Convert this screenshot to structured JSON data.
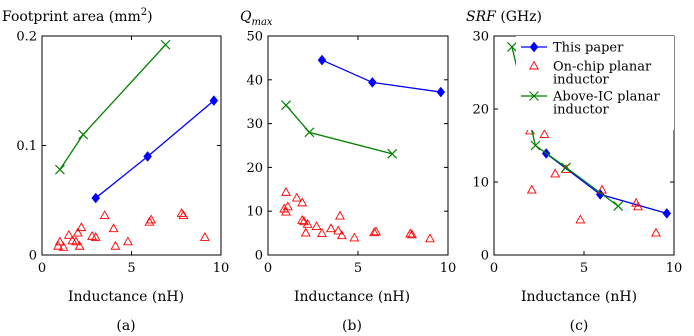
{
  "chart_data": [
    {
      "type": "scatter",
      "title": "Footprint area",
      "title_unit": "(mm",
      "title_sup": "2",
      "title_close": ")",
      "xlabel": "Inductance (nH)",
      "caption": "(a)",
      "xlim": [
        0,
        10
      ],
      "ylim": [
        0,
        0.2
      ],
      "xticks": [
        {
          "v": 0,
          "label": "0"
        },
        {
          "v": 5,
          "label": "5"
        },
        {
          "v": 10,
          "label": "10"
        }
      ],
      "yticks": [
        {
          "v": 0,
          "label": "0"
        },
        {
          "v": 0.1,
          "label": "0.1"
        },
        {
          "v": 0.2,
          "label": "0.2"
        }
      ],
      "series": [
        {
          "name": "This paper",
          "marker": "diamond",
          "line": true,
          "color": "#0000ff",
          "points": [
            [
              3,
              0.052
            ],
            [
              5.9,
              0.09
            ],
            [
              9.6,
              0.141
            ]
          ]
        },
        {
          "name": "On-chip planar inductor",
          "marker": "triangle",
          "line": false,
          "color": "#ff0000",
          "points": [
            [
              0.9,
              0.008
            ],
            [
              1.0,
              0.012
            ],
            [
              1.2,
              0.007
            ],
            [
              1.5,
              0.018
            ],
            [
              1.7,
              0.013
            ],
            [
              1.9,
              0.012
            ],
            [
              2.0,
              0.02
            ],
            [
              2.1,
              0.008
            ],
            [
              2.2,
              0.025
            ],
            [
              2.8,
              0.017
            ],
            [
              3.0,
              0.016
            ],
            [
              3.5,
              0.036
            ],
            [
              4.0,
              0.024
            ],
            [
              4.1,
              0.008
            ],
            [
              4.8,
              0.012
            ],
            [
              6.0,
              0.03
            ],
            [
              6.1,
              0.032
            ],
            [
              7.8,
              0.038
            ],
            [
              7.9,
              0.036
            ],
            [
              9.1,
              0.016
            ]
          ]
        },
        {
          "name": "Above-IC planar inductor",
          "marker": "x",
          "line": true,
          "color": "#008000",
          "points": [
            [
              1.0,
              0.078
            ],
            [
              2.3,
              0.11
            ],
            [
              6.9,
              0.192
            ]
          ]
        }
      ]
    },
    {
      "type": "scatter",
      "title": "Q",
      "title_sub": "max",
      "xlabel": "Inductance (nH)",
      "caption": "(b)",
      "xlim": [
        0,
        10
      ],
      "ylim": [
        0,
        50
      ],
      "xticks": [
        {
          "v": 0,
          "label": "0"
        },
        {
          "v": 5,
          "label": "5"
        },
        {
          "v": 10,
          "label": "10"
        }
      ],
      "yticks": [
        {
          "v": 0,
          "label": "0"
        },
        {
          "v": 10,
          "label": "10"
        },
        {
          "v": 20,
          "label": "20"
        },
        {
          "v": 30,
          "label": "30"
        },
        {
          "v": 40,
          "label": "40"
        },
        {
          "v": 50,
          "label": "50"
        }
      ],
      "series": [
        {
          "name": "This paper",
          "marker": "diamond",
          "line": true,
          "color": "#0000ff",
          "points": [
            [
              3,
              44.5
            ],
            [
              5.8,
              39.4
            ],
            [
              9.6,
              37.2
            ]
          ]
        },
        {
          "name": "On-chip planar inductor",
          "marker": "triangle",
          "line": false,
          "color": "#ff0000",
          "points": [
            [
              0.9,
              10.5
            ],
            [
              1.0,
              14.3
            ],
            [
              1.1,
              11.0
            ],
            [
              1.0,
              9.8
            ],
            [
              1.6,
              13.0
            ],
            [
              1.9,
              11.9
            ],
            [
              1.9,
              7.9
            ],
            [
              2.0,
              7.6
            ],
            [
              2.1,
              5.0
            ],
            [
              2.2,
              7.0
            ],
            [
              2.7,
              6.5
            ],
            [
              3.0,
              4.9
            ],
            [
              3.5,
              6.0
            ],
            [
              3.9,
              5.5
            ],
            [
              4.0,
              8.9
            ],
            [
              4.1,
              4.4
            ],
            [
              4.8,
              3.9
            ],
            [
              5.9,
              5.1
            ],
            [
              6.0,
              5.3
            ],
            [
              7.9,
              4.8
            ],
            [
              8.0,
              4.6
            ],
            [
              9.0,
              3.7
            ]
          ]
        },
        {
          "name": "Above-IC planar inductor",
          "marker": "x",
          "line": true,
          "color": "#008000",
          "points": [
            [
              1.0,
              34.2
            ],
            [
              2.3,
              28.0
            ],
            [
              6.9,
              23.1
            ]
          ]
        }
      ]
    },
    {
      "type": "scatter",
      "title": "SRF",
      "title_unit": "(GHz)",
      "xlabel": "Inductance (nH)",
      "caption": "(c)",
      "xlim": [
        0,
        10
      ],
      "ylim": [
        0,
        30
      ],
      "legend": "top-right",
      "xticks": [
        {
          "v": 0,
          "label": "0"
        },
        {
          "v": 5,
          "label": "5"
        },
        {
          "v": 10,
          "label": "10"
        }
      ],
      "yticks": [
        {
          "v": 0,
          "label": "0"
        },
        {
          "v": 10,
          "label": "10"
        },
        {
          "v": 20,
          "label": "20"
        },
        {
          "v": 30,
          "label": "30"
        }
      ],
      "series": [
        {
          "name": "This paper",
          "marker": "diamond",
          "line": true,
          "color": "#0000ff",
          "points": [
            [
              2.9,
              13.9
            ],
            [
              5.9,
              8.3
            ],
            [
              9.6,
              5.7
            ]
          ]
        },
        {
          "name": "On-chip planar inductor",
          "marker": "triangle",
          "line": false,
          "color": "#ff0000",
          "points": [
            [
              2.0,
              17.0
            ],
            [
              2.1,
              8.9
            ],
            [
              2.8,
              16.5
            ],
            [
              3.4,
              11.1
            ],
            [
              4.0,
              11.7
            ],
            [
              4.8,
              4.8
            ],
            [
              6.0,
              8.9
            ],
            [
              7.9,
              7.1
            ],
            [
              8.0,
              6.6
            ],
            [
              9.0,
              3.0
            ]
          ]
        },
        {
          "name": "Above-IC planar inductor",
          "marker": "x",
          "line": true,
          "color": "#008000",
          "points": [
            [
              1.0,
              28.5
            ],
            [
              2.3,
              15.0
            ],
            [
              4.0,
              12.0
            ],
            [
              6.9,
              6.7
            ]
          ]
        }
      ]
    }
  ],
  "legend": {
    "entries": [
      {
        "marker": "diamond",
        "color": "#0000ff",
        "line": true,
        "lines": [
          "This paper"
        ]
      },
      {
        "marker": "triangle",
        "color": "#ff0000",
        "line": false,
        "lines": [
          "On-chip planar",
          "inductor"
        ]
      },
      {
        "marker": "x",
        "color": "#008000",
        "line": true,
        "lines": [
          "Above-IC planar",
          "inductor"
        ]
      }
    ]
  }
}
